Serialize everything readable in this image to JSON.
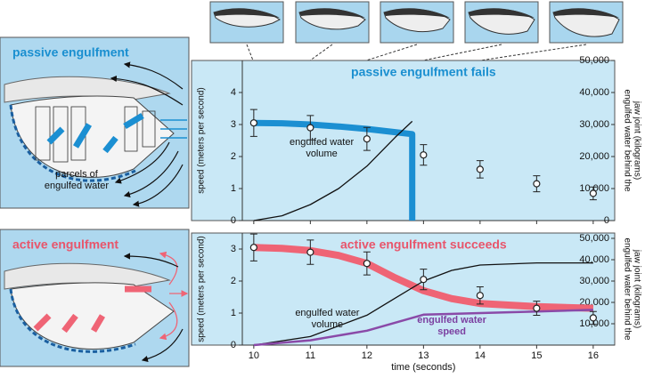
{
  "panels": {
    "passive": {
      "title": "passive engulfment",
      "caption": [
        "parcels of",
        "engulfed water"
      ]
    },
    "active": {
      "title": "active engulfment"
    }
  },
  "chart_data": [
    {
      "type": "line",
      "title": "passive engulfment fails",
      "title_color": "#1a8fd0",
      "ylabel": "speed (meters per second)",
      "y2label": [
        "engulfed water behind the",
        "jaw joint (kilograms)"
      ],
      "xlim": [
        8.9,
        16.38
      ],
      "xticks": [
        10,
        11,
        12,
        13,
        14,
        15,
        16
      ],
      "ylim": [
        0,
        5
      ],
      "yticks": [
        0,
        1,
        2,
        3,
        4
      ],
      "y2lim": [
        0,
        50000
      ],
      "y2ticks": [
        0,
        {
          "value": 10000,
          "label": "10,000"
        },
        {
          "value": 20000,
          "label": "20,000"
        },
        {
          "value": 30000,
          "label": "30,000"
        },
        {
          "value": 40000,
          "label": "40,000"
        },
        {
          "value": 50000,
          "label": "50,000"
        }
      ],
      "points": {
        "x": [
          10,
          11,
          12,
          13,
          14,
          15,
          16
        ],
        "values": [
          3.05,
          2.9,
          2.55,
          2.05,
          1.6,
          1.15,
          0.85
        ],
        "errors": [
          0.42,
          0.38,
          0.36,
          0.32,
          0.27,
          0.25,
          0.2
        ]
      },
      "series": [
        {
          "color": "#1b8fd2",
          "width": 7,
          "x": [
            10,
            10.5,
            11,
            11.5,
            12,
            12.5,
            12.8,
            12.8
          ],
          "values": [
            3.05,
            3.04,
            3.0,
            2.94,
            2.86,
            2.76,
            2.7,
            0
          ]
        },
        {
          "label": [
            "engulfed water",
            "volume"
          ],
          "color": "#111111",
          "width": 1.3,
          "axis": "y2",
          "x": [
            10,
            10.5,
            11,
            11.5,
            12,
            12.5,
            12.8
          ],
          "values": [
            0,
            1500,
            5000,
            10000,
            17000,
            26000,
            31000
          ]
        }
      ]
    },
    {
      "type": "line",
      "title": "active engulfment succeeds",
      "title_color": "#e8556b",
      "ylabel": "speed (meters per second)",
      "y2label": [
        "engulfed water behind the",
        "jaw joint (kilograms)"
      ],
      "xlabel": "time (seconds)",
      "xlim": [
        8.9,
        16.38
      ],
      "xticks": [
        10,
        11,
        12,
        13,
        14,
        15,
        16
      ],
      "ylim": [
        0,
        3.5
      ],
      "yticks": [
        0,
        1,
        2,
        3
      ],
      "y2lim": [
        0,
        52500
      ],
      "y2ticks": [
        {
          "value": 10000,
          "label": "10,000"
        },
        {
          "value": 20000,
          "label": "20,000"
        },
        {
          "value": 30000,
          "label": "30,000"
        },
        {
          "value": 40000,
          "label": "40,000"
        },
        {
          "value": 50000,
          "label": "50,000"
        }
      ],
      "points": {
        "x": [
          10,
          11,
          12,
          13,
          14,
          15,
          16
        ],
        "values": [
          3.05,
          2.9,
          2.55,
          2.05,
          1.55,
          1.15,
          0.85
        ],
        "errors": [
          0.42,
          0.38,
          0.36,
          0.32,
          0.27,
          0.22,
          0.2
        ]
      },
      "series": [
        {
          "color": "#ef6475",
          "width": 8,
          "x": [
            10,
            10.5,
            11,
            11.5,
            12,
            12.5,
            13,
            13.5,
            14,
            15,
            16
          ],
          "values": [
            3.05,
            3.02,
            2.95,
            2.8,
            2.55,
            2.1,
            1.7,
            1.45,
            1.3,
            1.2,
            1.15
          ]
        },
        {
          "label": [
            "engulfed water",
            "volume"
          ],
          "color": "#111111",
          "width": 1.3,
          "axis": "y2",
          "x": [
            10,
            11,
            12,
            12.5,
            13,
            13.5,
            14,
            15,
            16
          ],
          "values": [
            0,
            4000,
            14000,
            22000,
            30000,
            35000,
            37500,
            38500,
            38500
          ]
        },
        {
          "label": [
            "engulfed water",
            "speed"
          ],
          "label_color": "#7b3fa0",
          "color": "#8a4aa8",
          "width": 2.5,
          "x": [
            10,
            11,
            12,
            13,
            14,
            15,
            16
          ],
          "values": [
            0,
            0.15,
            0.45,
            0.95,
            1.0,
            1.05,
            1.1
          ]
        }
      ]
    }
  ]
}
